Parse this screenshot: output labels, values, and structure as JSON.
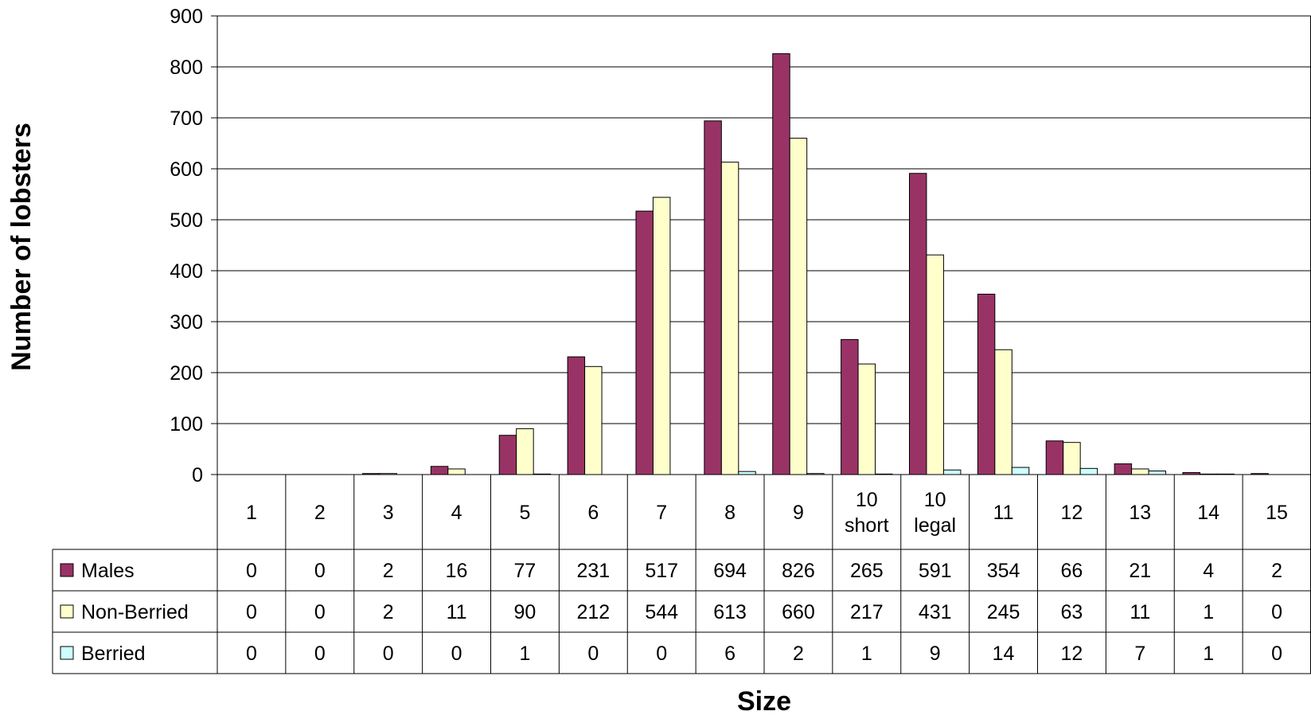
{
  "chart_data": {
    "type": "bar",
    "title": "",
    "xlabel": "Size",
    "ylabel": "Number of lobsters",
    "ylim": [
      0,
      900
    ],
    "yticks": [
      0,
      100,
      200,
      300,
      400,
      500,
      600,
      700,
      800,
      900
    ],
    "grid": true,
    "legend": "data-table-left",
    "categories": [
      [
        "1"
      ],
      [
        "2"
      ],
      [
        "3"
      ],
      [
        "4"
      ],
      [
        "5"
      ],
      [
        "6"
      ],
      [
        "7"
      ],
      [
        "8"
      ],
      [
        "9"
      ],
      [
        "10",
        "short"
      ],
      [
        "10",
        "legal"
      ],
      [
        "11"
      ],
      [
        "12"
      ],
      [
        "13"
      ],
      [
        "14"
      ],
      [
        "15"
      ]
    ],
    "series": [
      {
        "name": "Males",
        "color": "#993366",
        "values": [
          0,
          0,
          2,
          16,
          77,
          231,
          517,
          694,
          826,
          265,
          591,
          354,
          66,
          21,
          4,
          2
        ]
      },
      {
        "name": "Non-Berried",
        "color": "#ffffcc",
        "values": [
          0,
          0,
          2,
          11,
          90,
          212,
          544,
          613,
          660,
          217,
          431,
          245,
          63,
          11,
          1,
          0
        ]
      },
      {
        "name": "Berried",
        "color": "#ccffff",
        "values": [
          0,
          0,
          0,
          0,
          1,
          0,
          0,
          6,
          2,
          1,
          9,
          14,
          12,
          7,
          1,
          0
        ]
      }
    ]
  }
}
